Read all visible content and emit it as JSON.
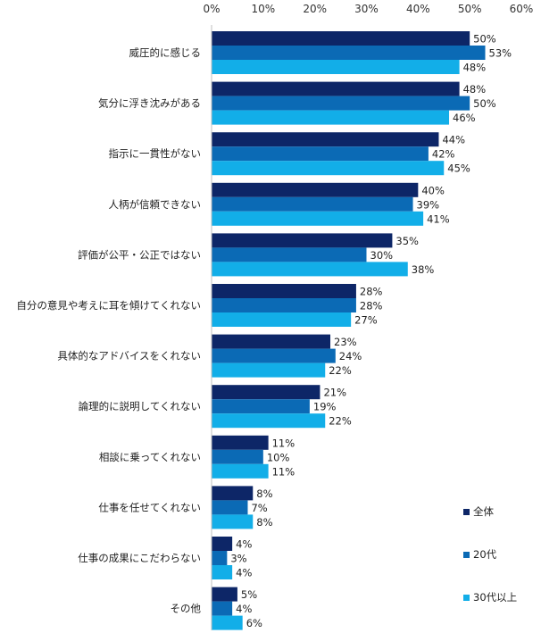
{
  "chart_data": {
    "type": "bar",
    "orientation": "horizontal",
    "categories": [
      "威圧的に感じる",
      "気分に浮き沈みがある",
      "指示に一貫性がない",
      "人柄が信頼できない",
      "評価が公平・公正ではない",
      "自分の意見や考えに耳を傾けてくれない",
      "具体的なアドバイスをくれない",
      "論理的に説明してくれない",
      "相談に乗ってくれない",
      "仕事を任せてくれない",
      "仕事の成果にこだわらない",
      "その他"
    ],
    "series": [
      {
        "name": "全体",
        "color": "#0d2667",
        "values": [
          50,
          48,
          44,
          40,
          35,
          28,
          23,
          21,
          11,
          8,
          4,
          5
        ]
      },
      {
        "name": "20代",
        "color": "#0b6ab5",
        "values": [
          53,
          50,
          42,
          39,
          30,
          28,
          24,
          19,
          10,
          7,
          3,
          4
        ]
      },
      {
        "name": "30代以上",
        "color": "#12aee8",
        "values": [
          48,
          46,
          45,
          41,
          38,
          27,
          22,
          22,
          11,
          8,
          4,
          6
        ]
      }
    ],
    "xlim": [
      0,
      60
    ],
    "xticks": [
      0,
      10,
      20,
      30,
      40,
      50,
      60
    ],
    "tick_suffix": "%",
    "value_suffix": "%",
    "grid": false,
    "legend_position": "bottom-right",
    "axis_position": "top"
  }
}
